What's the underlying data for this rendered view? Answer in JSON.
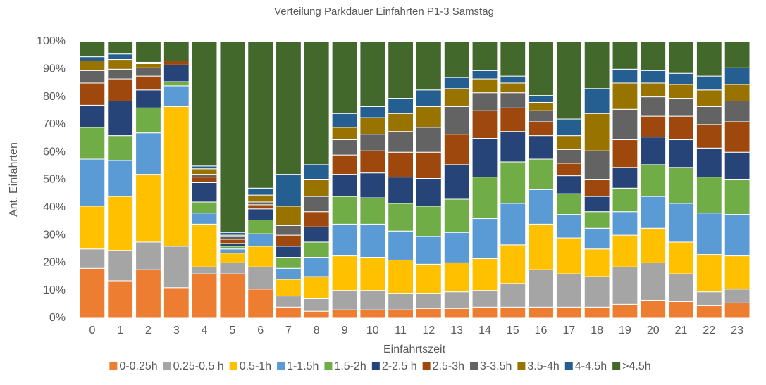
{
  "chart_data": {
    "type": "stacked_bar",
    "title": "Verteilung Parkdauer Einfahrten P1-3 Samstag",
    "x_label": "Einfahrtszeit",
    "y_label": "Ant. Einfahrten",
    "categories": [
      "0",
      "1",
      "2",
      "3",
      "4",
      "5",
      "6",
      "7",
      "8",
      "9",
      "10",
      "11",
      "12",
      "13",
      "14",
      "15",
      "16",
      "17",
      "18",
      "19",
      "20",
      "21",
      "22",
      "23"
    ],
    "ylim": [
      0,
      100
    ],
    "yticks": [
      {
        "value": 0,
        "label": "0%"
      },
      {
        "value": 10,
        "label": "10%"
      },
      {
        "value": 20,
        "label": "20%"
      },
      {
        "value": 30,
        "label": "30%"
      },
      {
        "value": 40,
        "label": "40%"
      },
      {
        "value": 50,
        "label": "50%"
      },
      {
        "value": 60,
        "label": "60%"
      },
      {
        "value": 70,
        "label": "70%"
      },
      {
        "value": 80,
        "label": "80%"
      },
      {
        "value": 90,
        "label": "90%"
      },
      {
        "value": 100,
        "label": "100%"
      }
    ],
    "grid": false,
    "legend": "bottom",
    "series": [
      {
        "name": "0-0.25h",
        "color": "#ED7D31",
        "values": [
          18,
          13.5,
          17.5,
          11,
          16,
          16,
          10.5,
          4,
          2.5,
          3,
          3,
          3,
          3.5,
          3.5,
          4,
          4,
          4,
          4,
          4,
          5,
          6.5,
          6,
          4.5,
          5.5
        ]
      },
      {
        "name": "0.25-0.5 h",
        "color": "#A5A5A5",
        "values": [
          7,
          11,
          10,
          15,
          2.5,
          4,
          8,
          4,
          4.5,
          7,
          7,
          6,
          5.5,
          6,
          6,
          8.5,
          13.5,
          12,
          11,
          13.5,
          13.5,
          10,
          5,
          5
        ]
      },
      {
        "name": "0.5-1h",
        "color": "#FFC000",
        "values": [
          15.5,
          19.5,
          24.5,
          50.5,
          15.5,
          3.5,
          7.5,
          6,
          8,
          12.5,
          12,
          12,
          10.5,
          10.5,
          11.5,
          14,
          16.5,
          13,
          10,
          11.5,
          12.5,
          11.5,
          13.5,
          12
        ]
      },
      {
        "name": "1-1.5h",
        "color": "#5B9BD5",
        "values": [
          17,
          13,
          15,
          7.5,
          4,
          1.5,
          4.5,
          4,
          7,
          11.5,
          12,
          10.5,
          10,
          11,
          14.5,
          15,
          12.5,
          8.5,
          7.5,
          8.5,
          11.5,
          14,
          15,
          15
        ]
      },
      {
        "name": "1.5-2h",
        "color": "#70AD47",
        "values": [
          11.5,
          9,
          9,
          1.5,
          4,
          1,
          5,
          4,
          5.5,
          10,
          9.5,
          10,
          11,
          12,
          15,
          15,
          11,
          7.5,
          6,
          8.5,
          11.5,
          13,
          13,
          12.5
        ]
      },
      {
        "name": "2-2.5 h",
        "color": "#264478",
        "values": [
          8,
          12.5,
          6.5,
          6,
          7,
          1,
          4,
          4,
          5.5,
          8,
          9,
          9.5,
          10,
          12.5,
          14,
          11,
          8.5,
          6.5,
          5.5,
          7.5,
          10,
          10,
          10.5,
          10
        ]
      },
      {
        "name": "2.5-3h",
        "color": "#9E480E",
        "values": [
          8,
          8,
          5,
          1.5,
          2,
          1.5,
          1.5,
          4,
          5.5,
          7,
          8,
          9,
          9.5,
          11,
          10,
          8.5,
          5,
          4.5,
          6,
          10,
          7.5,
          8.5,
          8.5,
          11
        ]
      },
      {
        "name": "3-3.5h",
        "color": "#636363",
        "values": [
          4.5,
          3.5,
          3,
          0,
          1,
          1,
          1,
          3.5,
          5.5,
          5.5,
          6,
          7.5,
          9,
          10,
          6.5,
          5.5,
          4,
          5,
          10.5,
          11,
          7,
          6.5,
          6.5,
          7.5
        ]
      },
      {
        "name": "3.5-4h",
        "color": "#997300",
        "values": [
          3.5,
          3.5,
          1.5,
          0,
          2,
          0.5,
          2.5,
          7,
          6,
          4.5,
          6,
          6.5,
          7.5,
          6.5,
          5,
          3.5,
          3,
          5,
          13.5,
          9.5,
          5,
          5,
          6,
          6
        ]
      },
      {
        "name": "4-4.5h",
        "color": "#255E91",
        "values": [
          1.5,
          2,
          0.5,
          0,
          1,
          1,
          2.5,
          11.5,
          5.5,
          5,
          4,
          5.5,
          6,
          4,
          3,
          2.5,
          2.5,
          6,
          9,
          5,
          4.5,
          4,
          5,
          6
        ]
      },
      {
        "name": ">4.5h",
        "color": "#43682B",
        "values": [
          5.5,
          4.5,
          7.5,
          7,
          45,
          69,
          53,
          48,
          44.5,
          26,
          23.5,
          20.5,
          17.5,
          13,
          10.5,
          12.5,
          19.5,
          28,
          17,
          10,
          10.5,
          11.5,
          12.5,
          9.5
        ]
      }
    ]
  }
}
